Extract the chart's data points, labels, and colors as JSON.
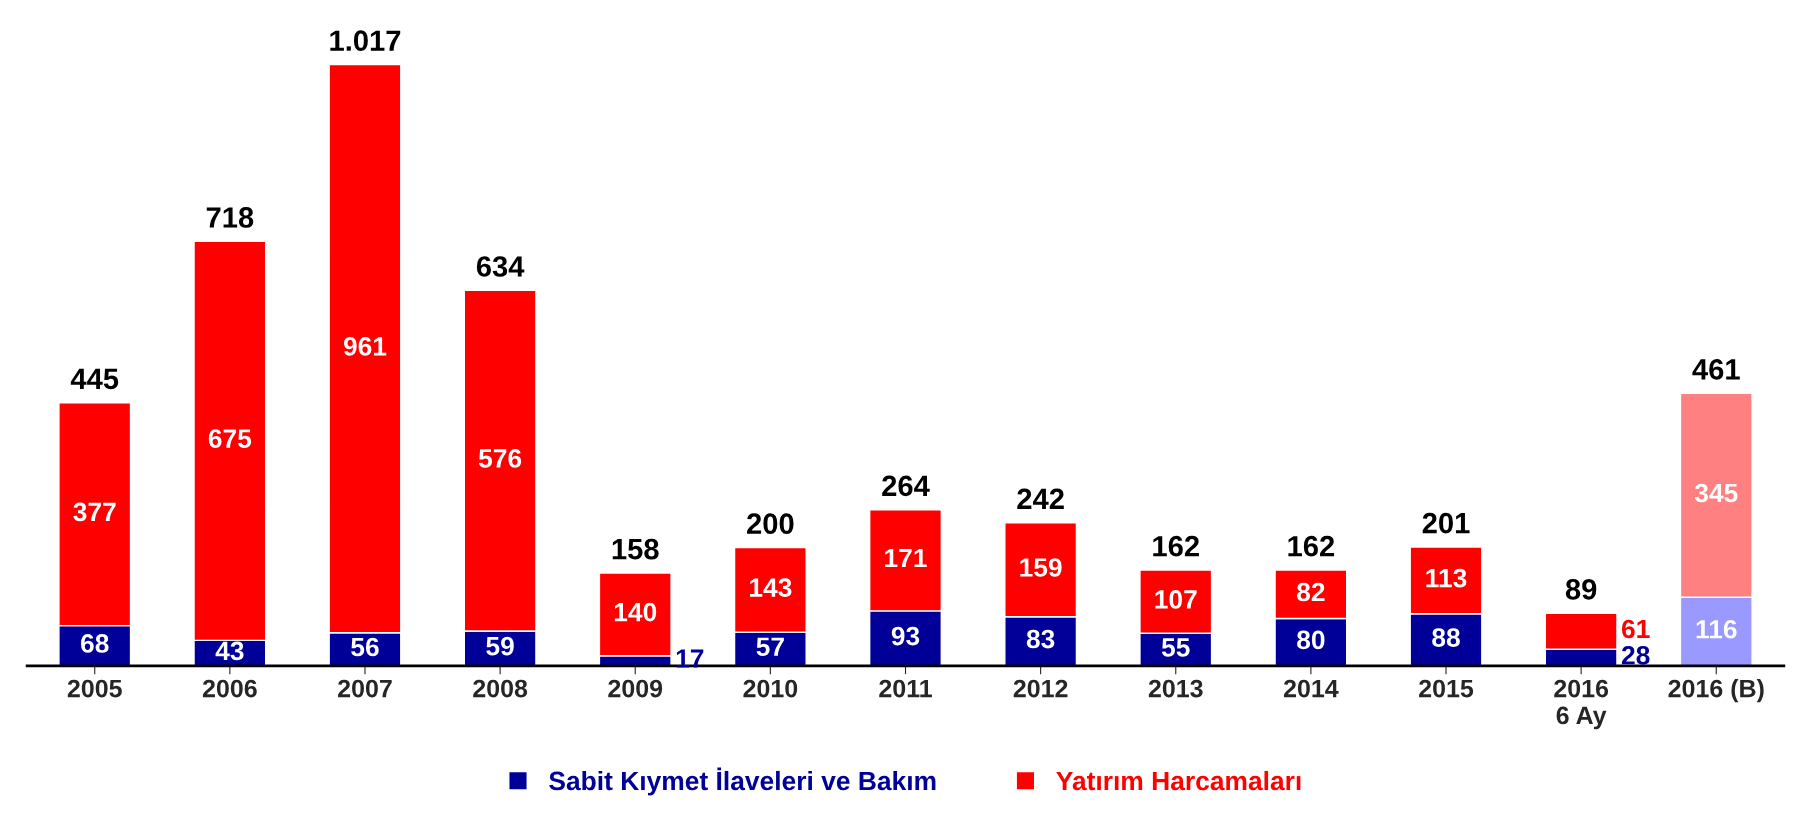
{
  "chart_data": {
    "type": "bar",
    "stacked": true,
    "categories": [
      "2005",
      "2006",
      "2007",
      "2008",
      "2009",
      "2010",
      "2011",
      "2012",
      "2013",
      "2014",
      "2015",
      "2016\n6 Ay",
      "2016 (B)"
    ],
    "series": [
      {
        "name": "Sabit Kıymet İlaveleri ve Bakım",
        "color": "#000099",
        "colors": [
          "#000099",
          "#000099",
          "#000099",
          "#000099",
          "#000099",
          "#000099",
          "#000099",
          "#000099",
          "#000099",
          "#000099",
          "#000099",
          "#000099",
          "#9999ff"
        ],
        "values": [
          68,
          43,
          56,
          59,
          17,
          57,
          93,
          83,
          55,
          80,
          88,
          28,
          116
        ]
      },
      {
        "name": "Yatırım Harcamaları",
        "color": "#ff0000",
        "colors": [
          "#ff0000",
          "#ff0000",
          "#ff0000",
          "#ff0000",
          "#ff0000",
          "#ff0000",
          "#ff0000",
          "#ff0000",
          "#ff0000",
          "#ff0000",
          "#ff0000",
          "#ff0000",
          "#ff8080"
        ],
        "values": [
          377,
          675,
          961,
          576,
          140,
          143,
          171,
          159,
          107,
          82,
          113,
          61,
          345
        ]
      }
    ],
    "totals": [
      "445",
      "718",
      "1.017",
      "634",
      "158",
      "200",
      "264",
      "242",
      "162",
      "162",
      "201",
      "89",
      "461"
    ],
    "data_labels": true,
    "tick_labels": "x",
    "legend": "bottom",
    "grid": false
  }
}
